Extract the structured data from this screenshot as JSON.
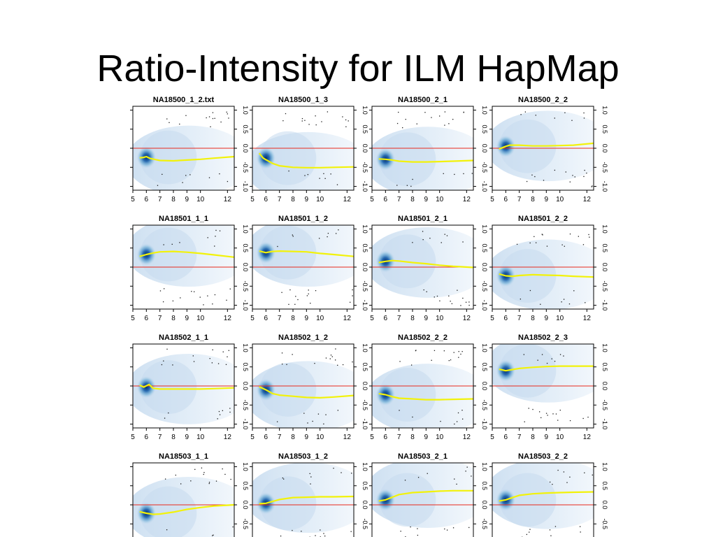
{
  "slide": {
    "title": "Ratio-Intensity for ILM HapMap"
  },
  "chart_data": {
    "type": "scatter",
    "description_panels": "4x4 grid of MA-style density scatter plots with loess fit (yellow) and zero reference (red)",
    "xlim": [
      5,
      12.5
    ],
    "ylim": [
      -1.1,
      1.1
    ],
    "x_ticks": [
      "5",
      "6",
      "7",
      "8",
      "9",
      "10",
      "12"
    ],
    "x_tick_values": [
      5,
      6,
      7,
      8,
      9,
      10,
      12
    ],
    "y_ticks": [
      "-1.0",
      "-0.5",
      "0.0",
      "0.5",
      "1.0"
    ],
    "y_tick_values": [
      -1.0,
      -0.5,
      0.0,
      0.5,
      1.0
    ],
    "reference_line": {
      "y": 0,
      "color": "#e8291c"
    },
    "fit_color": "#f2f20a",
    "density_color": "#2a6db5",
    "panels": [
      {
        "title": "NA18500_1_2.txt",
        "fit_x": [
          5.5,
          5.8,
          6.0,
          6.3,
          7.0,
          8.0,
          9.0,
          10.0,
          11.0,
          12.5
        ],
        "fit_y": [
          -0.25,
          -0.24,
          -0.22,
          -0.27,
          -0.32,
          -0.33,
          -0.31,
          -0.29,
          -0.26,
          -0.22
        ]
      },
      {
        "title": "NA18500_1_3",
        "fit_x": [
          5.5,
          5.8,
          6.0,
          6.5,
          7.0,
          8.0,
          9.0,
          10.0,
          11.0,
          12.5
        ],
        "fit_y": [
          -0.13,
          -0.26,
          -0.3,
          -0.4,
          -0.46,
          -0.5,
          -0.51,
          -0.51,
          -0.5,
          -0.49
        ]
      },
      {
        "title": "NA18500_2_1",
        "fit_x": [
          5.5,
          6.0,
          6.5,
          7.0,
          8.0,
          9.0,
          10.0,
          11.0,
          12.5
        ],
        "fit_y": [
          -0.28,
          -0.29,
          -0.31,
          -0.34,
          -0.36,
          -0.36,
          -0.35,
          -0.34,
          -0.32
        ]
      },
      {
        "title": "NA18500_2_2",
        "fit_x": [
          5.5,
          6.0,
          6.3,
          7.0,
          8.0,
          9.0,
          10.0,
          11.0,
          12.5
        ],
        "fit_y": [
          -0.02,
          0.05,
          0.08,
          0.08,
          0.06,
          0.06,
          0.07,
          0.08,
          0.13
        ]
      },
      {
        "title": "NA18501_1_1",
        "fit_x": [
          5.5,
          6.0,
          6.5,
          7.0,
          8.0,
          9.0,
          10.0,
          11.0,
          12.5
        ],
        "fit_y": [
          0.28,
          0.33,
          0.37,
          0.4,
          0.41,
          0.39,
          0.36,
          0.32,
          0.26
        ]
      },
      {
        "title": "NA18501_1_2",
        "fit_x": [
          5.5,
          6.0,
          6.5,
          7.0,
          8.0,
          9.0,
          10.0,
          11.0,
          12.5
        ],
        "fit_y": [
          0.42,
          0.38,
          0.41,
          0.42,
          0.41,
          0.4,
          0.36,
          0.33,
          0.28
        ]
      },
      {
        "title": "NA18501_2_1",
        "fit_x": [
          5.5,
          6.0,
          6.5,
          7.0,
          8.0,
          9.0,
          10.0,
          11.0,
          12.5
        ],
        "fit_y": [
          0.12,
          0.15,
          0.17,
          0.16,
          0.12,
          0.09,
          0.05,
          0.02,
          -0.01
        ]
      },
      {
        "title": "NA18501_2_2",
        "fit_x": [
          5.5,
          6.0,
          6.5,
          7.0,
          8.0,
          9.0,
          10.0,
          11.0,
          12.5
        ],
        "fit_y": [
          -0.18,
          -0.23,
          -0.24,
          -0.22,
          -0.2,
          -0.21,
          -0.22,
          -0.24,
          -0.26
        ]
      },
      {
        "title": "NA18502_1_1",
        "fit_x": [
          5.5,
          5.8,
          6.2,
          6.5,
          7.0,
          8.0,
          9.0,
          10.0,
          11.0,
          12.5
        ],
        "fit_y": [
          0.02,
          -0.03,
          0.04,
          -0.06,
          -0.08,
          -0.08,
          -0.08,
          -0.08,
          -0.07,
          -0.05
        ]
      },
      {
        "title": "NA18502_1_2",
        "fit_x": [
          5.5,
          6.0,
          6.5,
          7.0,
          8.0,
          9.0,
          10.0,
          11.0,
          12.5
        ],
        "fit_y": [
          -0.02,
          -0.1,
          -0.2,
          -0.24,
          -0.27,
          -0.3,
          -0.31,
          -0.29,
          -0.25
        ]
      },
      {
        "title": "NA18502_2_2",
        "fit_x": [
          5.5,
          6.0,
          6.5,
          7.0,
          8.0,
          9.0,
          10.0,
          11.0,
          12.5
        ],
        "fit_y": [
          -0.2,
          -0.23,
          -0.28,
          -0.32,
          -0.34,
          -0.36,
          -0.36,
          -0.35,
          -0.34
        ]
      },
      {
        "title": "NA18502_2_3",
        "fit_x": [
          5.5,
          6.0,
          6.5,
          7.0,
          8.0,
          9.0,
          10.0,
          11.0,
          12.5
        ],
        "fit_y": [
          0.44,
          0.4,
          0.43,
          0.46,
          0.49,
          0.51,
          0.52,
          0.52,
          0.52
        ]
      },
      {
        "title": "NA18503_1_1",
        "fit_x": [
          5.5,
          6.0,
          6.5,
          7.0,
          8.0,
          9.0,
          10.0,
          11.0,
          12.5
        ],
        "fit_y": [
          -0.18,
          -0.22,
          -0.25,
          -0.24,
          -0.19,
          -0.12,
          -0.07,
          -0.03,
          0.0
        ]
      },
      {
        "title": "NA18503_1_2",
        "fit_x": [
          5.5,
          6.0,
          6.5,
          7.0,
          8.0,
          9.0,
          10.0,
          11.0,
          12.5
        ],
        "fit_y": [
          0.03,
          0.04,
          0.09,
          0.14,
          0.19,
          0.2,
          0.21,
          0.21,
          0.22
        ]
      },
      {
        "title": "NA18503_2_1",
        "fit_x": [
          5.5,
          6.0,
          6.5,
          7.0,
          8.0,
          9.0,
          10.0,
          11.0,
          12.5
        ],
        "fit_y": [
          0.1,
          0.13,
          0.2,
          0.27,
          0.32,
          0.34,
          0.36,
          0.37,
          0.37
        ]
      },
      {
        "title": "NA18503_2_2",
        "fit_x": [
          5.5,
          6.0,
          6.5,
          7.0,
          8.0,
          9.0,
          10.0,
          11.0,
          12.5
        ],
        "fit_y": [
          0.1,
          0.13,
          0.19,
          0.25,
          0.29,
          0.31,
          0.32,
          0.33,
          0.34
        ]
      }
    ]
  }
}
